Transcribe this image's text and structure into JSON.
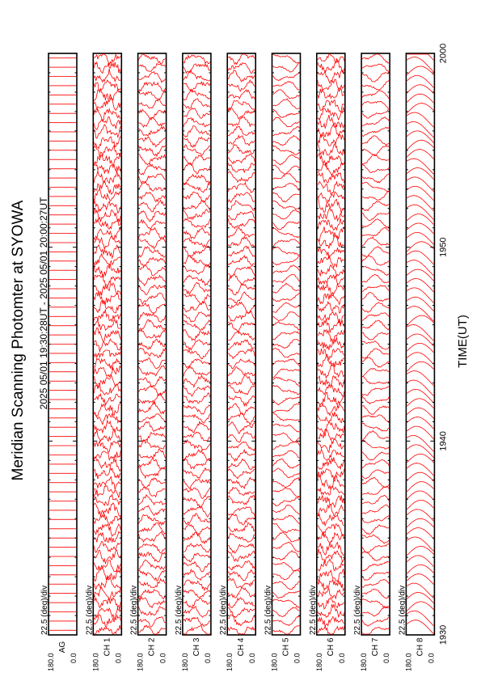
{
  "chart_data": {
    "type": "line",
    "title": "Meridian Scanning Photomter at SYOWA",
    "subtitle": "2025 05/01 19:30:28UT - 2025 05/01 20:00:27UT",
    "xlabel": "TIME(UT)",
    "x_ticks": [
      "1930",
      "1940",
      "1950",
      "2000"
    ],
    "y_tick_labels": [
      "180.0",
      "0.0"
    ],
    "scale_label": "22.5 (deg)/div",
    "line_color": "#ff0000",
    "grid": false,
    "panels": [
      {
        "channel": "AG",
        "style": "flat"
      },
      {
        "channel": "CH 1",
        "style": "noisy"
      },
      {
        "channel": "CH 2",
        "style": "medium"
      },
      {
        "channel": "CH 3",
        "style": "medium"
      },
      {
        "channel": "CH 4",
        "style": "medium"
      },
      {
        "channel": "CH 5",
        "style": "smooth"
      },
      {
        "channel": "CH 6",
        "style": "noisy"
      },
      {
        "channel": "CH 7",
        "style": "smooth"
      },
      {
        "channel": "CH 8",
        "style": "verysmooth"
      }
    ]
  }
}
